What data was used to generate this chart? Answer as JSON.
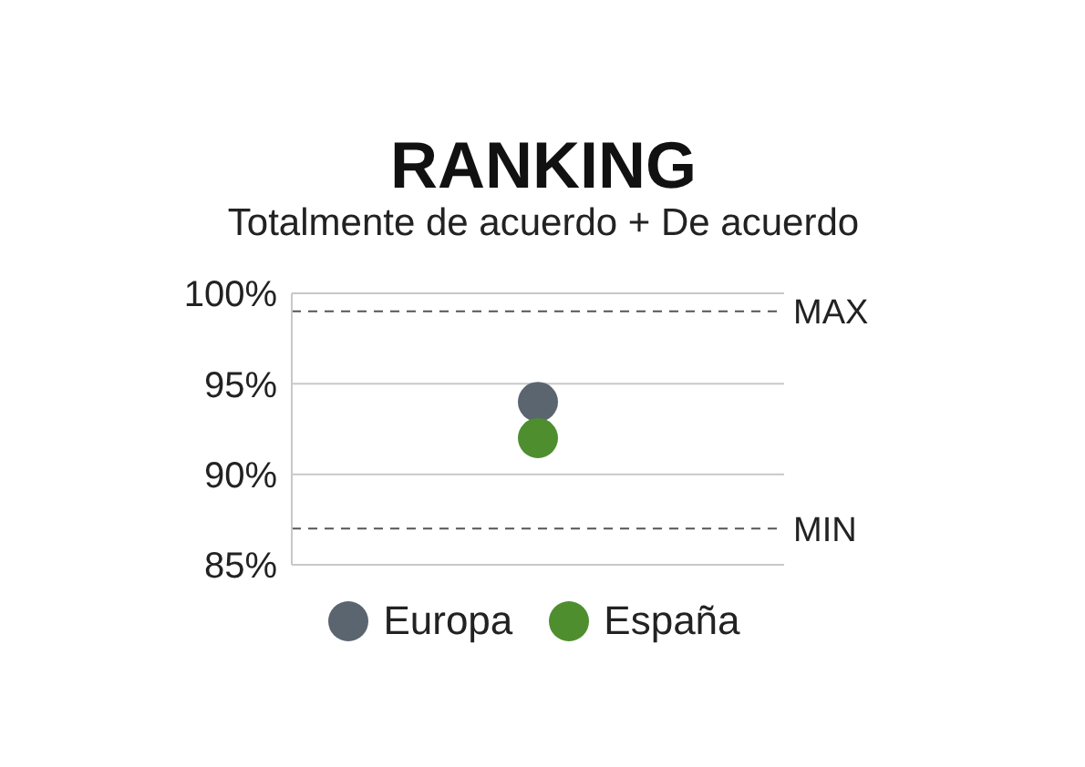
{
  "chart_data": {
    "type": "scatter",
    "title": "RANKING",
    "subtitle": "Totalmente de acuerdo + De acuerdo",
    "categories": [
      null
    ],
    "series": [
      {
        "name": "Europa",
        "color": "#5b6570",
        "values": [
          94
        ]
      },
      {
        "name": "España",
        "color": "#4e8e2f",
        "values": [
          92
        ]
      }
    ],
    "ylim": [
      85,
      100
    ],
    "yticks": [
      {
        "value": 85,
        "label": "85%"
      },
      {
        "value": 90,
        "label": "90%"
      },
      {
        "value": 95,
        "label": "95%"
      },
      {
        "value": 100,
        "label": "100%"
      }
    ],
    "ref_lines": [
      {
        "axis": "y",
        "value": 99,
        "label": "MAX",
        "line_style": "dashed"
      },
      {
        "axis": "y",
        "value": 87,
        "label": "MIN",
        "line_style": "dashed"
      }
    ],
    "grid": "y",
    "legend": "bottom",
    "marker": "circle"
  }
}
